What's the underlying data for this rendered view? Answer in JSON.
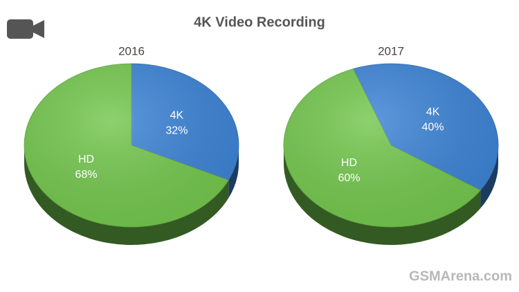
{
  "title": "4K Video Recording",
  "watermark": "GSMArena.com",
  "chart_data": [
    {
      "type": "pie",
      "title": "2016",
      "categories": [
        "4K",
        "HD"
      ],
      "values": [
        32,
        68
      ],
      "value_labels": [
        "32%",
        "68%"
      ],
      "colors": [
        "#3d84d6",
        "#74c74e"
      ]
    },
    {
      "type": "pie",
      "title": "2017",
      "categories": [
        "4K",
        "HD"
      ],
      "values": [
        40,
        60
      ],
      "value_labels": [
        "40%",
        "60%"
      ],
      "colors": [
        "#3d84d6",
        "#74c74e"
      ]
    }
  ]
}
